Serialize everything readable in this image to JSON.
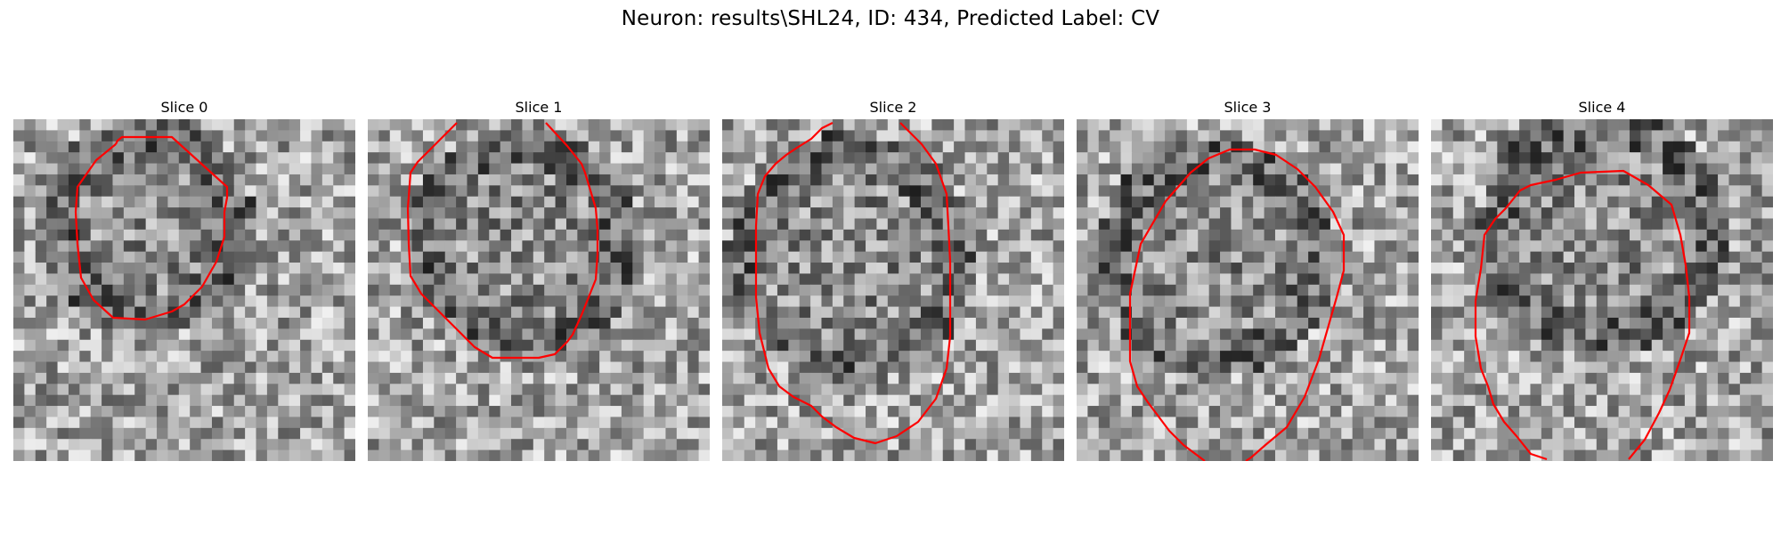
{
  "figure": {
    "title": "Neuron: results\\SHL24, ID: 434, Predicted Label: CV",
    "colormap": "gray",
    "outline_color": "#ff0000"
  },
  "slices": [
    {
      "title": "Slice 0"
    },
    {
      "title": "Slice 1"
    },
    {
      "title": "Slice 2"
    },
    {
      "title": "Slice 3"
    },
    {
      "title": "Slice 4"
    }
  ]
}
